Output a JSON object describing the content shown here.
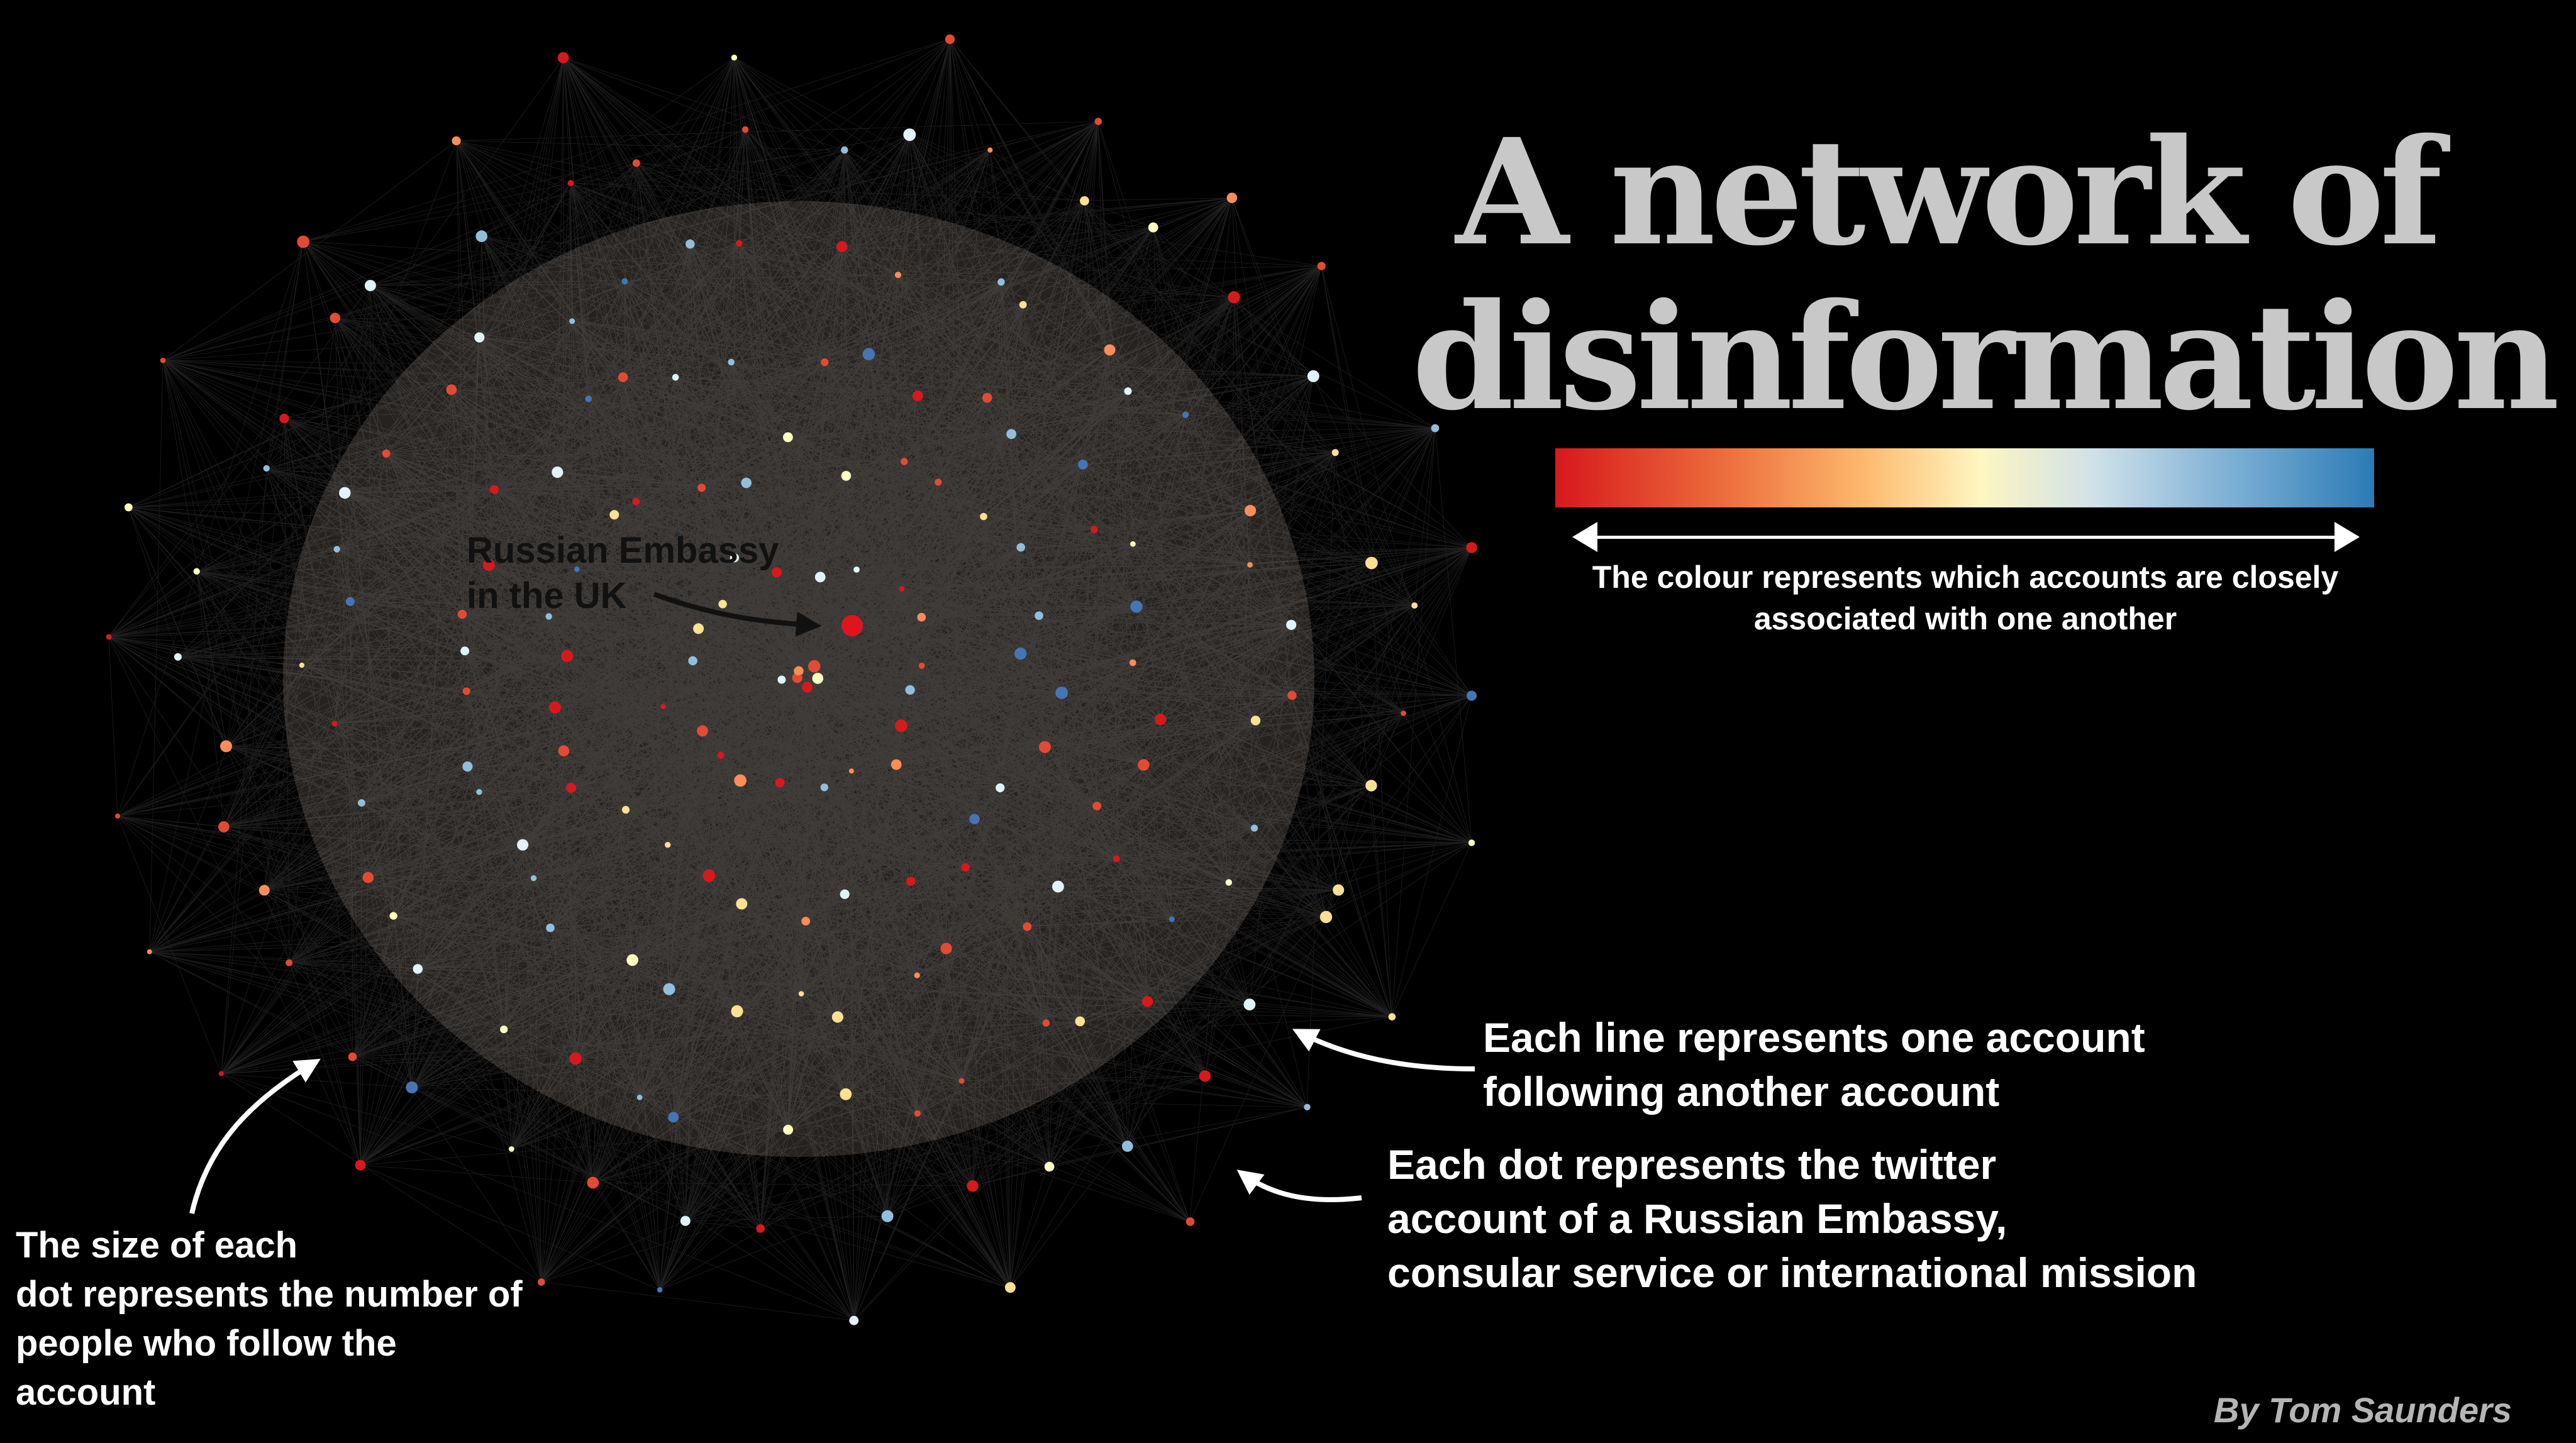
{
  "title": {
    "line1": "A network of",
    "line2": "disinformation"
  },
  "legend": {
    "colorbar_colors": [
      "#d7191c",
      "#ec6a3a",
      "#fdba6e",
      "#fef6c2",
      "#cfe0e8",
      "#7fb1d6",
      "#2c7bb6"
    ],
    "caption_line1": "The colour represents which accounts are closely",
    "caption_line2": "associated with one another"
  },
  "annotations": {
    "lines": {
      "line1": "Each line represents one account",
      "line2": "following another account"
    },
    "dots": {
      "line1": "Each dot represents the twitter",
      "line2": "account of a Russian Embassy,",
      "line3": "consular service or international mission"
    },
    "size": {
      "line1": "The size of each",
      "line2": "dot represents the number of",
      "line3": "people who follow the",
      "line4": "account"
    },
    "embassy": {
      "line1": "Russian Embassy",
      "line2": "in the UK"
    }
  },
  "credit": "By Tom Saunders",
  "colors": {
    "background": "#000000",
    "title": "#c8c8c8",
    "edge": "#ffffff",
    "embassy_node": "#e0141e",
    "palette": [
      "#d7191c",
      "#e34a33",
      "#fc8d59",
      "#fee090",
      "#ffffbf",
      "#e0f3f8",
      "#91bfdb",
      "#4575b4"
    ]
  }
}
